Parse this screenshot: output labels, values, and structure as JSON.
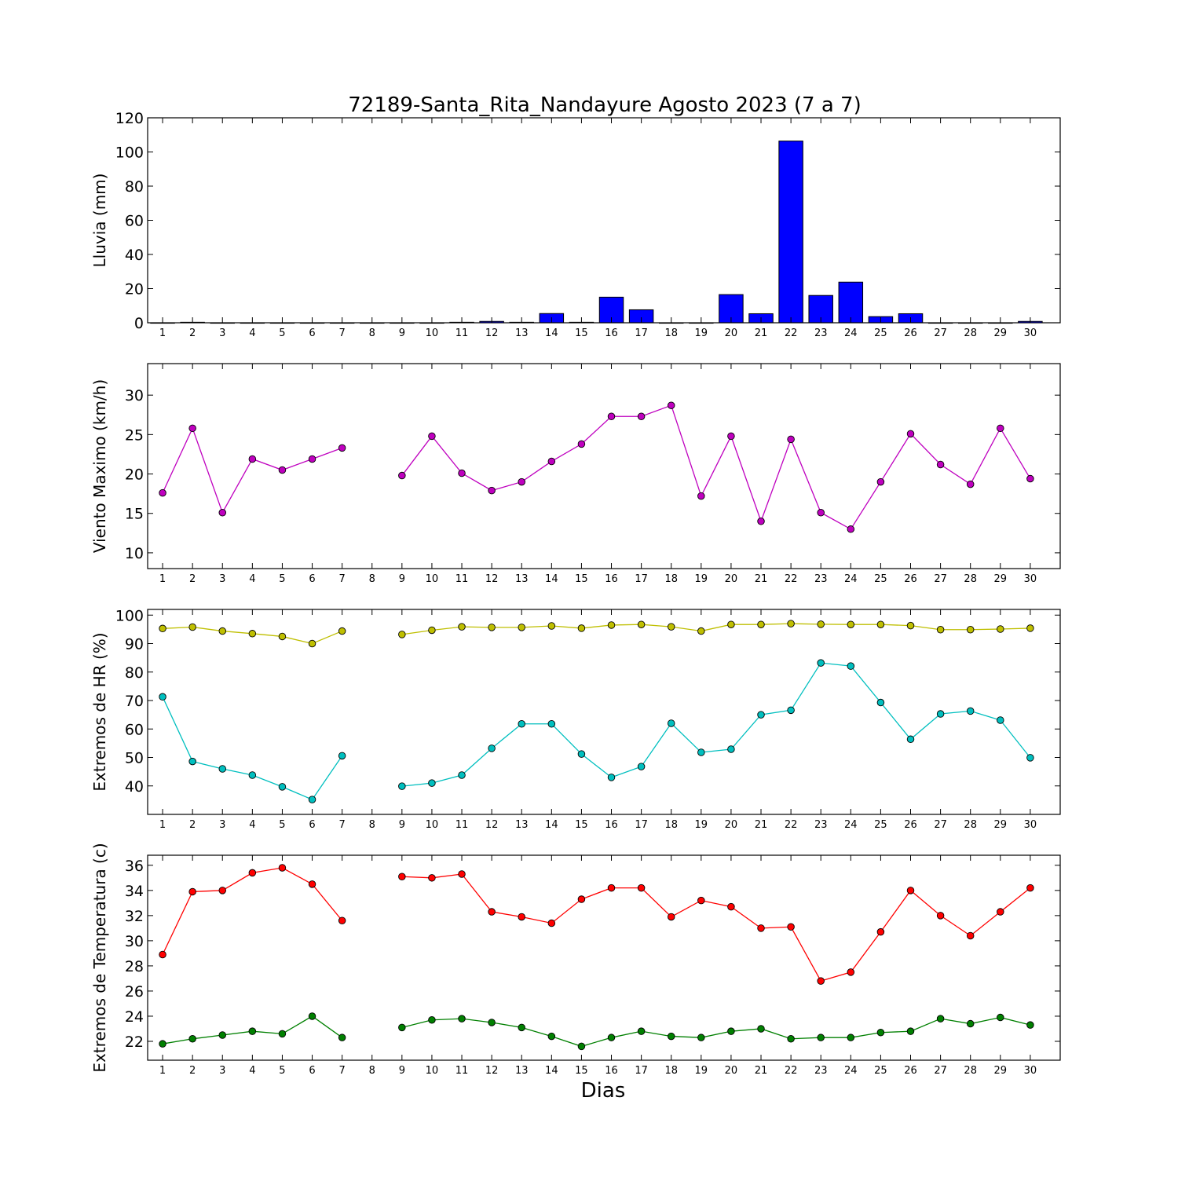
{
  "figure": {
    "title": "72189-Santa_Rita_Nandayure Agosto 2023  (7 a 7)",
    "xlabel": "Dias"
  },
  "chart_data": [
    {
      "type": "bar",
      "ylabel": "Lluvia (mm)",
      "ylim": [
        0,
        120
      ],
      "yticks": [
        0,
        20,
        40,
        60,
        80,
        100,
        120
      ],
      "categories": [
        "1",
        "2",
        "3",
        "4",
        "5",
        "6",
        "7",
        "8",
        "9",
        "10",
        "11",
        "12",
        "13",
        "14",
        "15",
        "16",
        "17",
        "18",
        "19",
        "20",
        "21",
        "22",
        "23",
        "24",
        "25",
        "26",
        "27",
        "28",
        "29",
        "30"
      ],
      "series": [
        {
          "color": "#0000ff",
          "values": [
            0,
            0.3,
            0,
            0,
            0,
            0,
            0,
            0,
            0,
            0,
            0.3,
            0.8,
            0.3,
            5.4,
            0.3,
            15.0,
            7.6,
            0,
            0,
            16.5,
            5.3,
            106.4,
            16.0,
            23.8,
            3.6,
            5.3,
            0,
            0,
            0,
            0.8
          ]
        }
      ]
    },
    {
      "type": "line",
      "ylabel": "Viento Maximo (km/h)",
      "ylim": [
        8,
        34
      ],
      "yticks": [
        10,
        15,
        20,
        25,
        30
      ],
      "categories": [
        "1",
        "2",
        "3",
        "4",
        "5",
        "6",
        "7",
        "8",
        "9",
        "10",
        "11",
        "12",
        "13",
        "14",
        "15",
        "16",
        "17",
        "18",
        "19",
        "20",
        "21",
        "22",
        "23",
        "24",
        "25",
        "26",
        "27",
        "28",
        "29",
        "30"
      ],
      "series": [
        {
          "color": "#bf00bf",
          "values": [
            17.6,
            25.8,
            15.1,
            21.9,
            20.5,
            21.9,
            23.3,
            null,
            19.8,
            24.8,
            20.1,
            17.9,
            19.0,
            21.6,
            23.8,
            27.3,
            27.3,
            28.7,
            17.2,
            24.8,
            14.0,
            24.4,
            15.1,
            13.0,
            19.0,
            25.1,
            21.2,
            18.7,
            25.8,
            19.4
          ]
        }
      ]
    },
    {
      "type": "line",
      "ylabel": "Extremos de HR (%)",
      "ylim": [
        30,
        102
      ],
      "yticks": [
        40,
        50,
        60,
        70,
        80,
        90,
        100
      ],
      "categories": [
        "1",
        "2",
        "3",
        "4",
        "5",
        "6",
        "7",
        "8",
        "9",
        "10",
        "11",
        "12",
        "13",
        "14",
        "15",
        "16",
        "17",
        "18",
        "19",
        "20",
        "21",
        "22",
        "23",
        "24",
        "25",
        "26",
        "27",
        "28",
        "29",
        "30"
      ],
      "series": [
        {
          "color": "#bfbf00",
          "values": [
            95.3,
            95.8,
            94.4,
            93.5,
            92.5,
            90.0,
            94.4,
            null,
            93.2,
            94.7,
            95.9,
            95.7,
            95.7,
            96.2,
            95.4,
            96.5,
            96.7,
            95.9,
            94.4,
            96.7,
            96.7,
            97.0,
            96.8,
            96.7,
            96.7,
            96.3,
            94.9,
            94.9,
            95.1,
            95.4
          ]
        },
        {
          "color": "#00bfbf",
          "values": [
            71.3,
            48.6,
            46.0,
            43.8,
            39.7,
            35.2,
            50.6,
            null,
            39.9,
            41.0,
            43.8,
            53.2,
            61.8,
            61.8,
            51.2,
            43.0,
            46.8,
            62.0,
            51.8,
            52.9,
            65.0,
            66.6,
            83.2,
            82.1,
            69.3,
            56.4,
            65.3,
            66.3,
            63.1,
            49.9
          ]
        }
      ]
    },
    {
      "type": "line",
      "ylabel": "Extremos de Temperatura (c)",
      "ylim": [
        20.5,
        36.8
      ],
      "yticks": [
        22,
        24,
        26,
        28,
        30,
        32,
        34,
        36
      ],
      "categories": [
        "1",
        "2",
        "3",
        "4",
        "5",
        "6",
        "7",
        "8",
        "9",
        "10",
        "11",
        "12",
        "13",
        "14",
        "15",
        "16",
        "17",
        "18",
        "19",
        "20",
        "21",
        "22",
        "23",
        "24",
        "25",
        "26",
        "27",
        "28",
        "29",
        "30"
      ],
      "series": [
        {
          "color": "#ff0000",
          "values": [
            28.9,
            33.9,
            34.0,
            35.4,
            35.8,
            34.5,
            31.6,
            null,
            35.1,
            35.0,
            35.3,
            32.3,
            31.9,
            31.4,
            33.3,
            34.2,
            34.2,
            31.9,
            33.2,
            32.7,
            31.0,
            31.1,
            26.8,
            27.5,
            30.7,
            34.0,
            32.0,
            30.4,
            32.3,
            34.2
          ]
        },
        {
          "color": "#008000",
          "values": [
            21.8,
            22.2,
            22.5,
            22.8,
            22.6,
            24.0,
            22.3,
            null,
            23.1,
            23.7,
            23.8,
            23.5,
            23.1,
            22.4,
            21.6,
            22.3,
            22.8,
            22.4,
            22.3,
            22.8,
            23.0,
            22.2,
            22.3,
            22.3,
            22.7,
            22.8,
            23.8,
            23.4,
            23.9,
            23.3
          ]
        }
      ]
    }
  ]
}
